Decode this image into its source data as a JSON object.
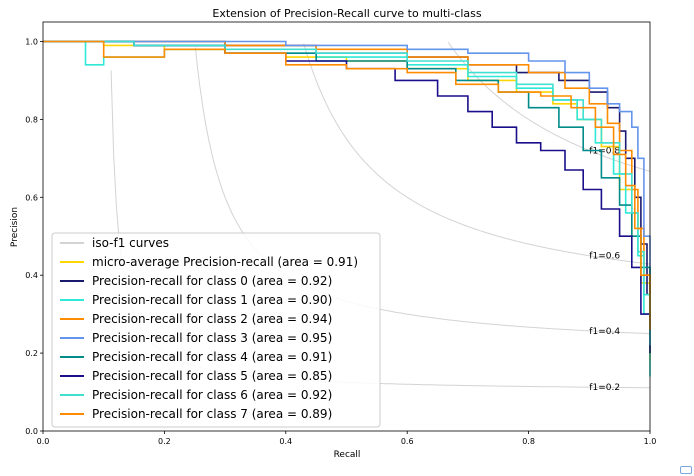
{
  "chart_data": {
    "type": "line",
    "title": "Extension of Precision-Recall curve to multi-class",
    "xlabel": "Recall",
    "ylabel": "Precision",
    "xlim": [
      0.0,
      1.0
    ],
    "ylim": [
      0.0,
      1.05
    ],
    "xticks": [
      "0.0",
      "0.2",
      "0.4",
      "0.6",
      "0.8",
      "1.0"
    ],
    "yticks": [
      "0.0",
      "0.2",
      "0.4",
      "0.6",
      "0.8",
      "1.0"
    ],
    "grid": false,
    "legend_position": "lower-left",
    "iso_f1": [
      {
        "f1": 0.2,
        "label": "f1=0.2"
      },
      {
        "f1": 0.4,
        "label": "f1=0.4"
      },
      {
        "f1": 0.6,
        "label": "f1=0.6"
      },
      {
        "f1": 0.8,
        "label": "f1=0.8"
      }
    ],
    "legend": [
      {
        "label": "iso-f1 curves",
        "color": "#d3d3d3"
      },
      {
        "label": "micro-average Precision-recall (area = 0.91)",
        "color": "#ffd700"
      },
      {
        "label": "Precision-recall for class 0 (area = 0.92)",
        "color": "#191970"
      },
      {
        "label": "Precision-recall for class 1 (area = 0.90)",
        "color": "#2ee8d8"
      },
      {
        "label": "Precision-recall for class 2 (area = 0.94)",
        "color": "#ff8c00"
      },
      {
        "label": "Precision-recall for class 3 (area = 0.95)",
        "color": "#6495ed"
      },
      {
        "label": "Precision-recall for class 4 (area = 0.91)",
        "color": "#008b8b"
      },
      {
        "label": "Precision-recall for class 5 (area = 0.85)",
        "color": "#1a0f8a"
      },
      {
        "label": "Precision-recall for class 6 (area = 0.92)",
        "color": "#40e0d0"
      },
      {
        "label": "Precision-recall for class 7 (area = 0.89)",
        "color": "#ff8c00"
      }
    ],
    "series": [
      {
        "color": "#ffd700",
        "x": [
          0,
          0.1,
          0.2,
          0.3,
          0.4,
          0.5,
          0.6,
          0.7,
          0.78,
          0.84,
          0.88,
          0.92,
          0.95,
          0.97,
          0.985,
          1.0
        ],
        "y": [
          1,
          0.99,
          0.98,
          0.97,
          0.96,
          0.95,
          0.93,
          0.9,
          0.87,
          0.84,
          0.8,
          0.73,
          0.62,
          0.5,
          0.38,
          0.18
        ]
      },
      {
        "color": "#191970",
        "x": [
          0,
          0.15,
          0.3,
          0.45,
          0.6,
          0.7,
          0.78,
          0.85,
          0.9,
          0.93,
          0.95,
          0.96,
          0.975,
          0.985,
          0.995,
          1.0
        ],
        "y": [
          1,
          1,
          0.99,
          0.97,
          0.96,
          0.94,
          0.92,
          0.9,
          0.87,
          0.83,
          0.77,
          0.7,
          0.6,
          0.48,
          0.35,
          0.27
        ]
      },
      {
        "color": "#2ee8d8",
        "x": [
          0,
          0.07,
          0.1,
          0.2,
          0.3,
          0.45,
          0.6,
          0.7,
          0.78,
          0.84,
          0.88,
          0.91,
          0.94,
          0.96,
          0.98,
          0.99,
          1.0
        ],
        "y": [
          1,
          0.94,
          0.96,
          0.98,
          0.97,
          0.96,
          0.94,
          0.91,
          0.88,
          0.85,
          0.8,
          0.74,
          0.66,
          0.56,
          0.45,
          0.3,
          0.14
        ]
      },
      {
        "color": "#ff8c00",
        "x": [
          0,
          0.15,
          0.3,
          0.45,
          0.6,
          0.7,
          0.8,
          0.86,
          0.9,
          0.93,
          0.95,
          0.97,
          0.98,
          0.99,
          1.0
        ],
        "y": [
          1,
          1,
          0.99,
          0.98,
          0.96,
          0.94,
          0.92,
          0.88,
          0.84,
          0.79,
          0.72,
          0.62,
          0.52,
          0.4,
          0.28
        ]
      },
      {
        "color": "#6495ed",
        "x": [
          0,
          0.2,
          0.4,
          0.6,
          0.7,
          0.8,
          0.86,
          0.9,
          0.93,
          0.95,
          0.97,
          0.98,
          0.99,
          1.0
        ],
        "y": [
          1,
          1,
          0.99,
          0.98,
          0.97,
          0.95,
          0.92,
          0.88,
          0.84,
          0.82,
          0.78,
          0.7,
          0.5,
          0.22
        ]
      },
      {
        "color": "#008b8b",
        "x": [
          0,
          0.15,
          0.3,
          0.45,
          0.6,
          0.68,
          0.75,
          0.8,
          0.85,
          0.89,
          0.92,
          0.95,
          0.97,
          0.985,
          1.0
        ],
        "y": [
          1,
          0.99,
          0.97,
          0.95,
          0.93,
          0.9,
          0.87,
          0.83,
          0.78,
          0.72,
          0.65,
          0.58,
          0.5,
          0.42,
          0.26
        ]
      },
      {
        "color": "#1a0f8a",
        "x": [
          0,
          0.15,
          0.3,
          0.4,
          0.5,
          0.58,
          0.65,
          0.7,
          0.74,
          0.78,
          0.82,
          0.86,
          0.89,
          0.92,
          0.95,
          0.97,
          0.985,
          1.0
        ],
        "y": [
          1,
          0.99,
          0.97,
          0.95,
          0.93,
          0.9,
          0.86,
          0.82,
          0.78,
          0.74,
          0.72,
          0.67,
          0.62,
          0.57,
          0.5,
          0.42,
          0.3,
          0.2
        ]
      },
      {
        "color": "#40e0d0",
        "x": [
          0,
          0.15,
          0.3,
          0.45,
          0.6,
          0.7,
          0.78,
          0.84,
          0.89,
          0.92,
          0.95,
          0.97,
          0.98,
          0.99,
          1.0
        ],
        "y": [
          1,
          0.99,
          0.98,
          0.97,
          0.95,
          0.92,
          0.89,
          0.85,
          0.8,
          0.74,
          0.66,
          0.56,
          0.46,
          0.35,
          0.22
        ]
      },
      {
        "color": "#ff8c00",
        "x": [
          0,
          0.07,
          0.1,
          0.2,
          0.3,
          0.4,
          0.5,
          0.6,
          0.68,
          0.75,
          0.82,
          0.87,
          0.91,
          0.94,
          0.96,
          0.975,
          0.985,
          1.0
        ],
        "y": [
          1,
          1,
          0.96,
          0.98,
          0.97,
          0.94,
          0.93,
          0.92,
          0.89,
          0.87,
          0.86,
          0.83,
          0.78,
          0.71,
          0.63,
          0.52,
          0.4,
          0.26
        ]
      }
    ]
  }
}
